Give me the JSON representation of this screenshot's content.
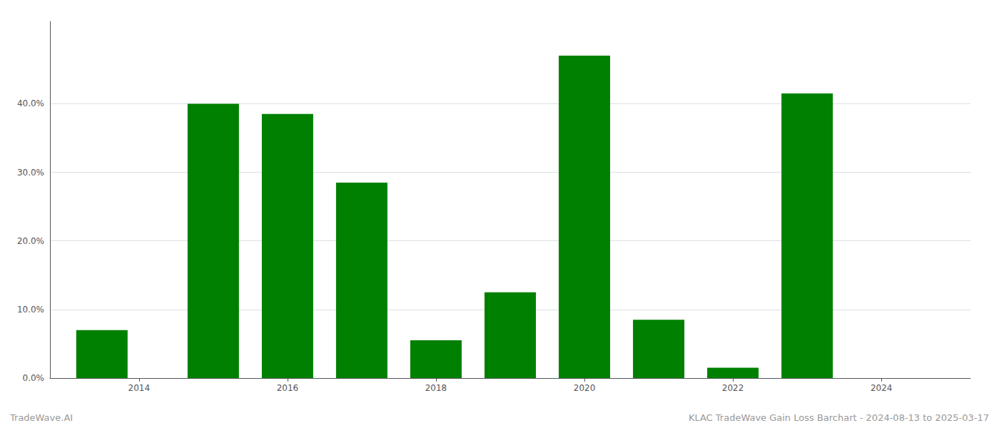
{
  "chart_data": {
    "type": "bar",
    "x": [
      2013.5,
      2015.0,
      2016.0,
      2017.0,
      2018.0,
      2019.0,
      2020.0,
      2021.0,
      2022.0,
      2023.0
    ],
    "values": [
      0.07,
      0.4,
      0.385,
      0.285,
      0.055,
      0.125,
      0.47,
      0.085,
      0.015,
      0.415
    ],
    "color": "#008000",
    "xlim": [
      2012.8,
      2025.2
    ],
    "xticks": [
      2014,
      2016,
      2018,
      2020,
      2022,
      2024
    ],
    "ylim": [
      0,
      0.52
    ],
    "yticks": [
      {
        "value": 0.0,
        "label": "0.0%"
      },
      {
        "value": 0.1,
        "label": "10.0%"
      },
      {
        "value": 0.2,
        "label": "20.0%"
      },
      {
        "value": 0.3,
        "label": "30.0%"
      },
      {
        "value": 0.4,
        "label": "40.0%"
      }
    ],
    "grid": true,
    "annotations": [
      "TradeWave.AI",
      "KLAC TradeWave Gain Loss Barchart - 2024-08-13 to 2025-03-17"
    ]
  }
}
